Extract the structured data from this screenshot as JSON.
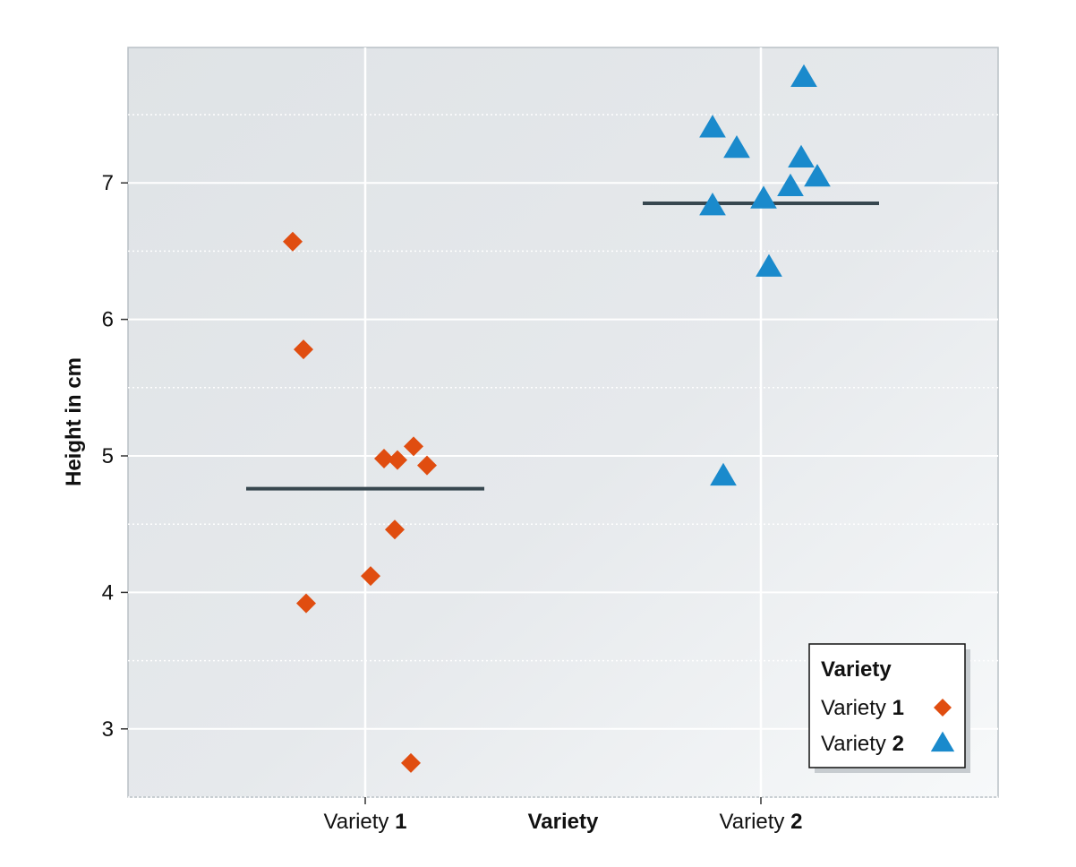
{
  "chart_data": {
    "type": "scatter",
    "xlabel": "Variety",
    "ylabel": "Height in cm",
    "categories": [
      {
        "prefix": "Variety ",
        "num": "1"
      },
      {
        "prefix": "Variety ",
        "num": "2"
      }
    ],
    "ylim": [
      2.5,
      8.0
    ],
    "yticks": [
      3,
      4,
      5,
      6,
      7
    ],
    "grid": true,
    "legend": {
      "title": "Variety",
      "placement": "bottom-right",
      "entries": [
        {
          "prefix": "Variety ",
          "num": "1",
          "marker": "diamond"
        },
        {
          "prefix": "Variety ",
          "num": "2",
          "marker": "triangle"
        }
      ]
    },
    "series": [
      {
        "category": 0,
        "marker": "diamond",
        "color": "#e04d10",
        "mean": 4.76,
        "points": [
          {
            "x": -0.27,
            "y": 6.57
          },
          {
            "x": -0.23,
            "y": 5.78
          },
          {
            "x": -0.22,
            "y": 3.92
          },
          {
            "x": 0.02,
            "y": 4.12
          },
          {
            "x": 0.07,
            "y": 4.98
          },
          {
            "x": 0.11,
            "y": 4.46
          },
          {
            "x": 0.12,
            "y": 4.97
          },
          {
            "x": 0.17,
            "y": 2.75
          },
          {
            "x": 0.18,
            "y": 5.07
          },
          {
            "x": 0.23,
            "y": 4.93
          }
        ]
      },
      {
        "category": 1,
        "marker": "triangle",
        "color": "#1a8acc",
        "mean": 6.85,
        "points": [
          {
            "x": -0.18,
            "y": 7.4
          },
          {
            "x": -0.18,
            "y": 6.83
          },
          {
            "x": -0.14,
            "y": 4.85
          },
          {
            "x": -0.09,
            "y": 7.25
          },
          {
            "x": 0.01,
            "y": 6.88
          },
          {
            "x": 0.03,
            "y": 6.38
          },
          {
            "x": 0.11,
            "y": 6.97
          },
          {
            "x": 0.15,
            "y": 7.18
          },
          {
            "x": 0.16,
            "y": 7.77
          },
          {
            "x": 0.21,
            "y": 7.04
          }
        ]
      }
    ]
  }
}
